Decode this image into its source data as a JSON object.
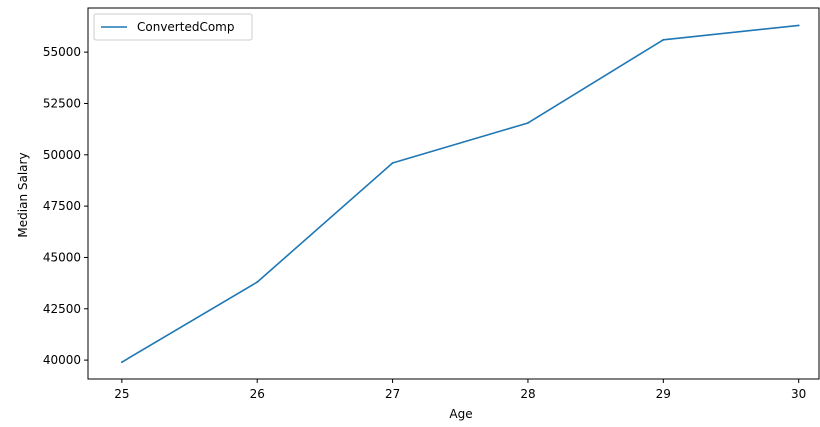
{
  "chart_data": {
    "type": "line",
    "title": "",
    "xlabel": "Age",
    "ylabel": "Median Salary",
    "x": [
      25,
      26,
      27,
      28,
      29,
      30
    ],
    "series": [
      {
        "name": "ConvertedComp",
        "values": [
          39900,
          43800,
          49600,
          51550,
          55600,
          56300
        ],
        "color": "#1f77b4"
      }
    ],
    "xlim": [
      24.75,
      30.15
    ],
    "ylim": [
      39080,
      57150
    ],
    "xticks": [
      25,
      26,
      27,
      28,
      29,
      30
    ],
    "yticks": [
      40000,
      42500,
      45000,
      47500,
      50000,
      52500,
      55000
    ],
    "grid": false,
    "legend": "top-left"
  }
}
